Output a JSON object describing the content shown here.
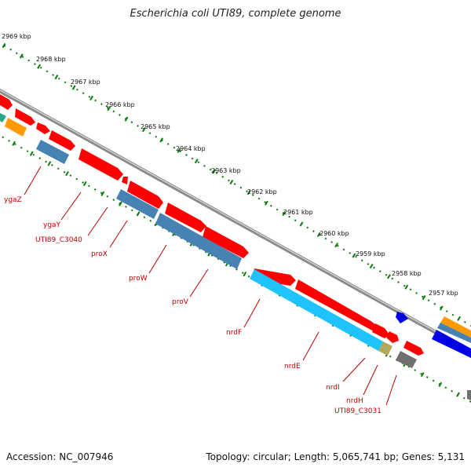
{
  "header": {
    "title": "Escherichia coli UTI89, complete genome"
  },
  "footer": {
    "accession": "Accession: NC_007946",
    "stats": "Topology: circular; Length: 5,065,741 bp; Genes: 5,131"
  },
  "colors": {
    "background": "#ffffff",
    "backbone": "#8a8a8a",
    "tick": "#0a7a0a",
    "label_red": "#c00000",
    "cds_forward": "#ff0000",
    "cds_reverse": "#4682b4",
    "cds_light_blue": "#1ec3ff",
    "cds_orange": "#ff9a00",
    "cds_dark_blue": "#0000e6",
    "cds_gray": "#707070",
    "cds_olive": "#b4a85a",
    "cds_teal": "#2aa88c"
  },
  "scale_labels": [
    "2969 kbp",
    "2968 kbp",
    "2967 kbp",
    "2966 kbp",
    "2965 kbp",
    "2964 kbp",
    "2963 kbp",
    "2962 kbp",
    "2961 kbp",
    "2960 kbp",
    "2959 kbp",
    "2958 kbp",
    "2957 kbp"
  ],
  "gene_labels": [
    "ygaZ",
    "ygaY",
    "UTI89_C3040",
    "proX",
    "proW",
    "proV",
    "nrdF",
    "nrdE",
    "nrdI",
    "nrdH",
    "UTI89_C3031"
  ]
}
